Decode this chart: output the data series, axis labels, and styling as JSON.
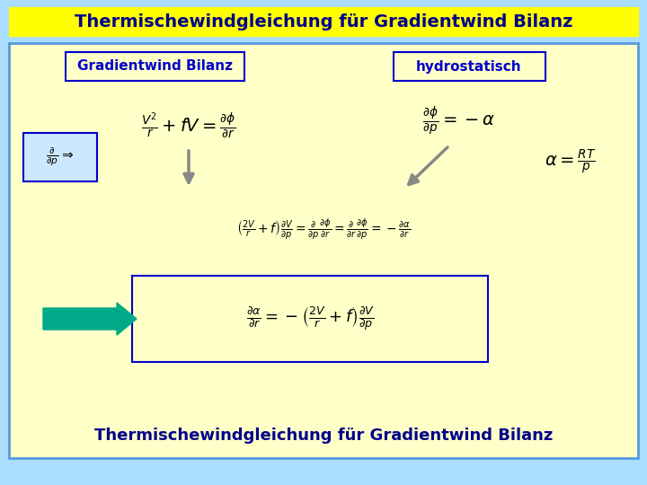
{
  "title": "Thermischewindgleichung für Gradientwind Bilanz",
  "title_bg": "#ffff00",
  "title_color": "#00008b",
  "main_bg": "#ffffc8",
  "outer_bg": "#aaddff",
  "border_color": "#5599dd",
  "box1_label": "Gradientwind Bilanz",
  "box2_label": "hydrostatisch",
  "box_border": "#0000cc",
  "box_text_color": "#0000cc",
  "eq1": "$\\frac{V^2}{r} + fV = \\frac{\\partial\\phi}{\\partial r}$",
  "eq2": "$\\frac{\\partial\\phi}{\\partial p} = -\\alpha$",
  "eq3": "$\\alpha = \\frac{RT}{p}$",
  "eq4": "$\\left(\\frac{2V}{r}+f\\right)\\frac{\\partial V}{\\partial p} = \\frac{\\partial}{\\partial p}\\frac{\\partial\\phi}{\\partial r} = \\frac{\\partial}{\\partial r}\\frac{\\partial\\phi}{\\partial p} = -\\frac{\\partial\\alpha}{\\partial r}$",
  "eq5": "$\\frac{\\partial\\alpha}{\\partial r} = -\\left(\\frac{2V}{r}+f\\right)\\frac{\\partial V}{\\partial p}$",
  "eq_deriv": "$\\frac{\\partial}{\\partial p}\\Rightarrow$",
  "bottom_text": "Thermischewindgleichung für Gradientwind Bilanz",
  "bottom_text_color": "#00008b",
  "arrow_color": "#888888",
  "big_arrow_color": "#00aa88",
  "eq_box_border": "#0000cc",
  "dp_box_bg": "#cce8ff"
}
